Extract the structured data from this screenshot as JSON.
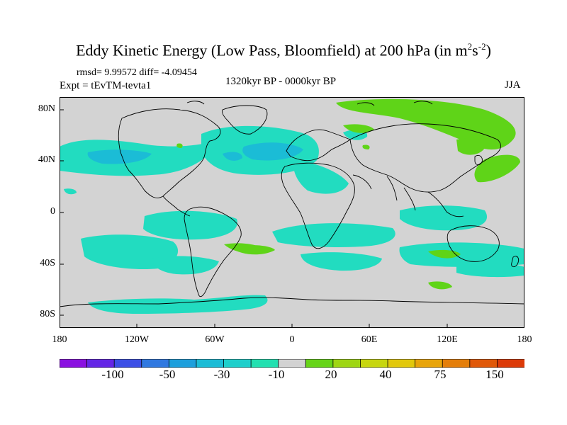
{
  "title": {
    "main": "Eddy Kinetic Energy (Low Pass, Bloomfield) at 200 hPa (in m",
    "exp1": "2",
    "mid": "s",
    "exp2": "-2",
    "close": ")"
  },
  "stats": {
    "rmsd": "rmsd= 9.99572 diff= -4.09454"
  },
  "experiment": "Expt = tEvTM-tevta1",
  "period": "1320kyr BP - 0000kyr BP",
  "season": "JJA",
  "map": {
    "background_color": "#d3d3d3",
    "coastline_color": "#000000",
    "y_ticks": [
      "80N",
      "40N",
      "0",
      "40S",
      "80S"
    ],
    "x_ticks": [
      "180",
      "120W",
      "60W",
      "0",
      "60E",
      "120E",
      "180"
    ]
  },
  "colorbar": {
    "colors": [
      "#8a10e0",
      "#6426e6",
      "#3c4fe6",
      "#2f78e0",
      "#1d9fdc",
      "#1bbcd6",
      "#1ecfcb",
      "#22e0b0",
      "#d2d2d2",
      "#66d418",
      "#9ed613",
      "#c7d60f",
      "#e2c80c",
      "#e8a40a",
      "#e47e09",
      "#e05808",
      "#dc3a08"
    ],
    "labels": [
      "-100",
      "-50",
      "-30",
      "-10",
      "20",
      "40",
      "75",
      "150"
    ]
  }
}
